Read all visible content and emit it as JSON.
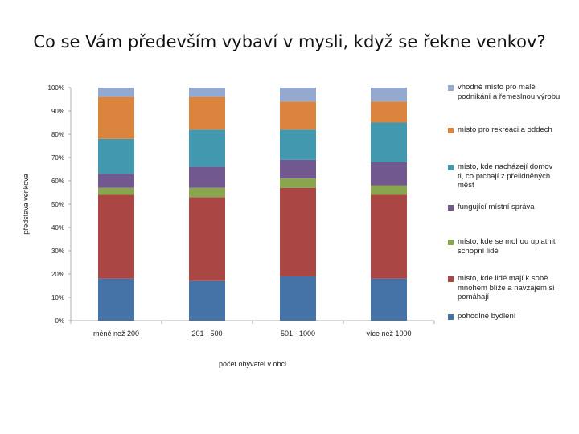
{
  "slide_title": "Co se Vám především vybaví v mysli, když se řekne venkov?",
  "chart_data": {
    "type": "bar",
    "stacked": true,
    "title": "Co se Vám především vybaví v mysli, když se řekne venkov?",
    "xlabel": "počet obyvatel v obci",
    "ylabel": "představa venkova",
    "ylim": [
      0,
      100
    ],
    "yticks": [
      "0%",
      "10%",
      "20%",
      "30%",
      "40%",
      "50%",
      "60%",
      "70%",
      "80%",
      "90%",
      "100%"
    ],
    "categories": [
      "méně než 200",
      "201 - 500",
      "501 - 1000",
      "více než 1000"
    ],
    "series": [
      {
        "name": "pohodlné bydlení",
        "color": "#4572A7",
        "values": [
          18,
          17,
          19,
          18
        ]
      },
      {
        "name": "místo, kde lidé mají k sobě mnohem blíže a navzájem si pomáhají",
        "color": "#AA4643",
        "values": [
          36,
          36,
          38,
          36
        ]
      },
      {
        "name": "místo, kde se mohou uplatnit schopní lidé",
        "color": "#89A54E",
        "values": [
          3,
          4,
          4,
          4
        ]
      },
      {
        "name": "fungující místní správa",
        "color": "#71588F",
        "values": [
          6,
          9,
          8,
          10
        ]
      },
      {
        "name": "místo, kde nacházejí domov ti, co prchají z přelidněných měst",
        "color": "#4198AF",
        "values": [
          15,
          16,
          13,
          17
        ]
      },
      {
        "name": "místo pro rekreaci a oddech",
        "color": "#DB843D",
        "values": [
          18,
          14,
          12,
          9
        ]
      },
      {
        "name": "vhodné místo pro malé podnikání a řemeslnou výrobu",
        "color": "#93A9CF",
        "values": [
          4,
          4,
          6,
          6
        ]
      }
    ],
    "legend": [
      {
        "label": "vhodné místo pro malé podnikání a řemeslnou výrobu",
        "color": "#93A9CF"
      },
      {
        "label": "místo pro rekreaci a oddech",
        "color": "#DB843D"
      },
      {
        "label": "místo, kde nacházejí domov ti, co prchají z přelidněných měst",
        "color": "#4198AF"
      },
      {
        "label": "fungující místní správa",
        "color": "#71588F"
      },
      {
        "label": "místo, kde se mohou uplatnit schopní lidé",
        "color": "#89A54E"
      },
      {
        "label": "místo, kde lidé mají k sobě mnohem blíže a navzájem si pomáhají",
        "color": "#AA4643"
      },
      {
        "label": "pohodlné bydlení",
        "color": "#4572A7"
      }
    ]
  }
}
